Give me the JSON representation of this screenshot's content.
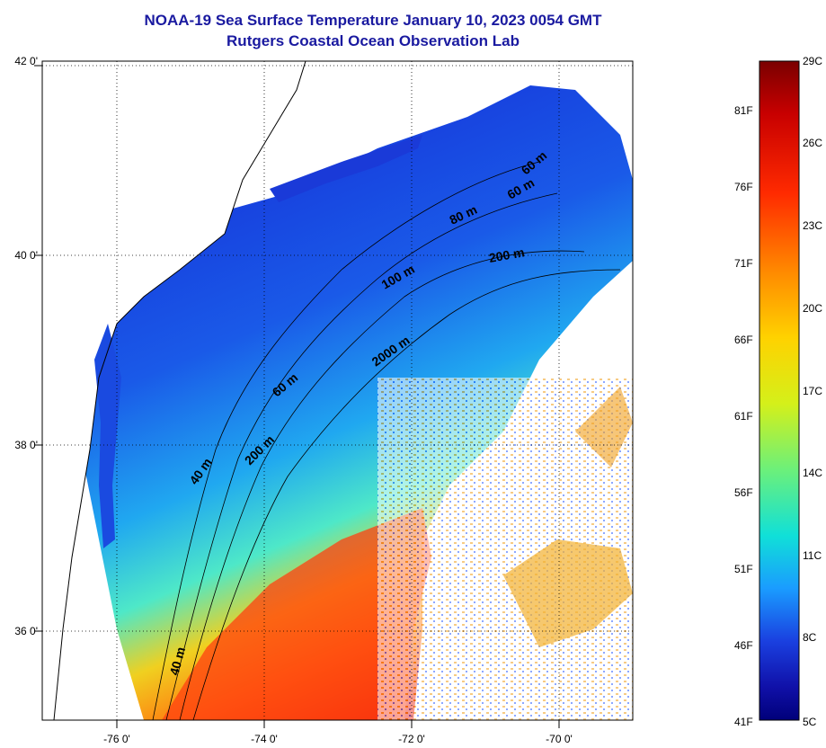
{
  "title": {
    "line1": "NOAA-19 Sea Surface Temperature January 10, 2023 0054 GMT",
    "line2": "Rutgers Coastal Ocean Observation Lab"
  },
  "map": {
    "lat_ticks": [
      "42 0'",
      "40 0'",
      "38 0'",
      "36 0'"
    ],
    "lon_ticks": [
      "-76 0'",
      "-74 0'",
      "-72 0'",
      "-70 0'"
    ],
    "contours": [
      {
        "label": "60 m",
        "series": "shallow"
      },
      {
        "label": "60 m",
        "series": "shallow"
      },
      {
        "label": "80 m",
        "series": "mid"
      },
      {
        "label": "200 m",
        "series": "shelf"
      },
      {
        "label": "100 m",
        "series": "mid"
      },
      {
        "label": "2000 m",
        "series": "slope"
      },
      {
        "label": "60 m",
        "series": "shallow"
      },
      {
        "label": "200 m",
        "series": "shelf"
      },
      {
        "label": "40 m",
        "series": "coast"
      },
      {
        "label": "40 m",
        "series": "coast"
      }
    ]
  },
  "colorbar": {
    "fahrenheit_labels": [
      "81F",
      "76F",
      "71F",
      "66F",
      "61F",
      "56F",
      "51F",
      "46F",
      "41F"
    ],
    "celsius_labels": [
      "29C",
      "26C",
      "23C",
      "20C",
      "17C",
      "14C",
      "11C",
      "8C",
      "5C"
    ],
    "colors": [
      "#7a0000",
      "#c80000",
      "#ff2a00",
      "#ff8a00",
      "#ffd200",
      "#d4f01a",
      "#6cf07a",
      "#10e0d8",
      "#1a9cff",
      "#1a40e0",
      "#1010a8",
      "#00007a"
    ]
  }
}
